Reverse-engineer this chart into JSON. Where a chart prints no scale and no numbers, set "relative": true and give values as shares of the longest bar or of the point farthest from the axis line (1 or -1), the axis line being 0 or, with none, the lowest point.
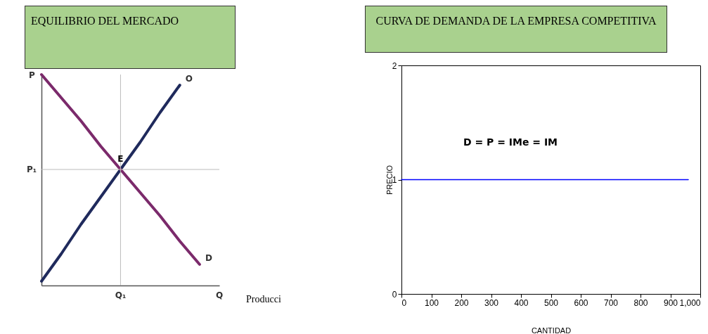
{
  "chart_data": [
    {
      "type": "line",
      "title": "EQUILIBRIO DEL MERCADO",
      "ylabel": "P",
      "relative": true,
      "legend": false,
      "categories": [
        null,
        null,
        null,
        null,
        "Q₁",
        null,
        null,
        null,
        null,
        "Q"
      ],
      "series": [
        {
          "name": "O",
          "color": "#1f2a5c",
          "values": [
            0.02,
            0.15,
            0.29,
            0.42,
            0.55,
            0.68,
            0.82,
            0.95,
            null,
            null
          ]
        },
        {
          "name": "D",
          "color": "#7b2a6b",
          "values": [
            1,
            0.89,
            0.78,
            0.66,
            0.55,
            0.44,
            0.33,
            0.21,
            0.1,
            null
          ]
        }
      ],
      "ref_lines": [
        {
          "axis": "x",
          "value": "Q₁",
          "color": "#bbbbbb"
        },
        {
          "axis": "y",
          "value": 0.55,
          "label": "P₁",
          "color": "#bbbbbb"
        }
      ],
      "annotations": [
        {
          "text": "E",
          "x": "Q₁",
          "y": 0.55
        },
        "Producci"
      ]
    },
    {
      "type": "line",
      "title": "CURVA DE DEMANDA DE LA EMPRESA COMPETITIVA",
      "xlabel": "CANTIDAD",
      "ylabel": "PRECIO",
      "legend": false,
      "grid": false,
      "xlim": [
        0,
        1000
      ],
      "xticks": [
        0,
        100,
        200,
        300,
        400,
        500,
        600,
        700,
        800,
        900,
        {
          "value": 1000,
          "label": "1,000"
        }
      ],
      "ylim": [
        0,
        2
      ],
      "yticks": [
        0,
        1,
        2
      ],
      "series": [
        {
          "color": "#0000ff",
          "x": [
            0,
            960
          ],
          "values": [
            1,
            1
          ]
        }
      ],
      "annotations": [
        "D = P = IMe = IM"
      ]
    }
  ]
}
